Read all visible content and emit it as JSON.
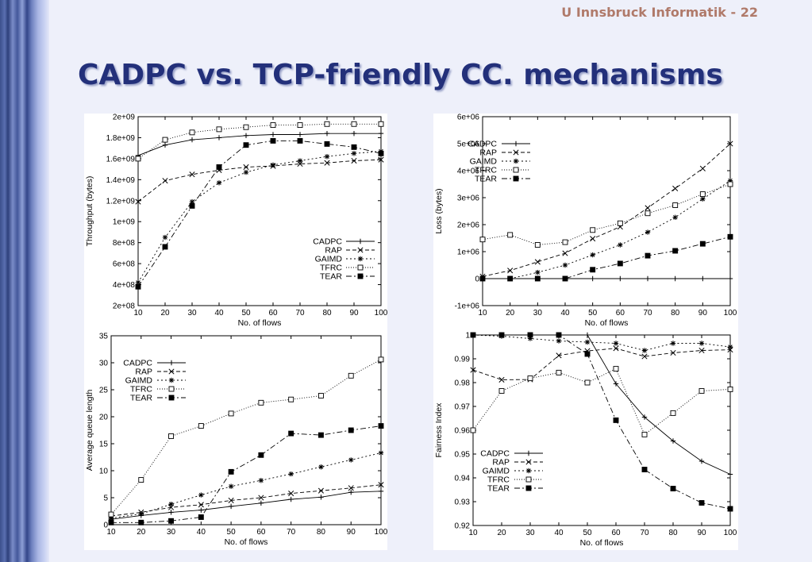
{
  "slide": {
    "header": "U Innsbruck Informatik - 22",
    "title": "CADPC vs. TCP-friendly CC. mechanisms"
  },
  "chart_data": [
    {
      "type": "line",
      "xlabel": "No. of flows",
      "ylabel": "Throughput (bytes)",
      "x": [
        10,
        20,
        30,
        40,
        50,
        60,
        70,
        80,
        90,
        100
      ],
      "xlim": [
        10,
        100
      ],
      "ylim": [
        200000000,
        2000000000
      ],
      "xticks": [
        "10",
        "20",
        "30",
        "40",
        "50",
        "60",
        "70",
        "80",
        "90",
        "100"
      ],
      "yticks": [
        "2e+08",
        "4e+08",
        "6e+08",
        "8e+08",
        "1e+09",
        "1.2e+09",
        "1.4e+09",
        "1.6e+09",
        "1.8e+09",
        "2e+09"
      ],
      "legend_position": "lower-right",
      "series": [
        {
          "name": "CADPC",
          "marker": "plus",
          "dash": "",
          "values": [
            1630000000,
            1730000000,
            1780000000,
            1800000000,
            1820000000,
            1830000000,
            1830000000,
            1840000000,
            1840000000,
            1840000000
          ]
        },
        {
          "name": "RAP",
          "marker": "x",
          "dash": "5,3",
          "values": [
            1190000000,
            1390000000,
            1450000000,
            1490000000,
            1520000000,
            1530000000,
            1550000000,
            1560000000,
            1580000000,
            1590000000
          ]
        },
        {
          "name": "GAIMD",
          "marker": "star",
          "dash": "2,3",
          "values": [
            420000000,
            850000000,
            1190000000,
            1370000000,
            1470000000,
            1540000000,
            1580000000,
            1620000000,
            1650000000,
            1670000000
          ]
        },
        {
          "name": "TFRC",
          "marker": "square",
          "dash": "1,2",
          "values": [
            1600000000,
            1780000000,
            1850000000,
            1880000000,
            1900000000,
            1920000000,
            1920000000,
            1930000000,
            1930000000,
            1930000000
          ]
        },
        {
          "name": "TEAR",
          "marker": "filled-square",
          "dash": "7,3,2,3",
          "values": [
            380000000,
            760000000,
            1150000000,
            1520000000,
            1730000000,
            1770000000,
            1770000000,
            1740000000,
            1710000000,
            1650000000
          ]
        }
      ]
    },
    {
      "type": "line",
      "xlabel": "No. of flows",
      "ylabel": "Loss (bytes)",
      "x": [
        10,
        20,
        30,
        40,
        50,
        60,
        70,
        80,
        90,
        100
      ],
      "xlim": [
        10,
        100
      ],
      "ylim": [
        -1000000,
        6000000
      ],
      "xticks": [
        "10",
        "20",
        "30",
        "40",
        "50",
        "60",
        "70",
        "80",
        "90",
        "100"
      ],
      "yticks": [
        "-1e+06",
        "0",
        "1e+06",
        "2e+06",
        "3e+06",
        "4e+06",
        "5e+06",
        "6e+06"
      ],
      "legend_position": "top-left",
      "series": [
        {
          "name": "CADPC",
          "marker": "plus",
          "dash": "",
          "values": [
            0,
            0,
            0,
            0,
            0,
            0,
            0,
            0,
            0,
            0
          ]
        },
        {
          "name": "RAP",
          "marker": "x",
          "dash": "5,3",
          "values": [
            80000,
            300000,
            620000,
            940000,
            1480000,
            1920000,
            2620000,
            3340000,
            4080000,
            5000000
          ]
        },
        {
          "name": "GAIMD",
          "marker": "star",
          "dash": "2,3",
          "values": [
            0,
            0,
            230000,
            500000,
            880000,
            1250000,
            1720000,
            2270000,
            2950000,
            3630000
          ]
        },
        {
          "name": "TFRC",
          "marker": "square",
          "dash": "1,2",
          "values": [
            1450000,
            1620000,
            1250000,
            1350000,
            1800000,
            2050000,
            2420000,
            2720000,
            3130000,
            3500000
          ]
        },
        {
          "name": "TEAR",
          "marker": "filled-square",
          "dash": "7,3,2,3",
          "values": [
            0,
            0,
            0,
            0,
            330000,
            560000,
            850000,
            1030000,
            1290000,
            1550000
          ]
        }
      ]
    },
    {
      "type": "line",
      "xlabel": "No. of flows",
      "ylabel": "Average queue length",
      "x": [
        10,
        20,
        30,
        40,
        50,
        60,
        70,
        80,
        90,
        100
      ],
      "xlim": [
        10,
        100
      ],
      "ylim": [
        0,
        35
      ],
      "xticks": [
        "10",
        "20",
        "30",
        "40",
        "50",
        "60",
        "70",
        "80",
        "90",
        "100"
      ],
      "yticks": [
        "0",
        "5",
        "10",
        "15",
        "20",
        "25",
        "30",
        "35"
      ],
      "legend_position": "top-left",
      "series": [
        {
          "name": "CADPC",
          "marker": "plus",
          "dash": "",
          "values": [
            1.0,
            1.7,
            2.3,
            2.7,
            3.4,
            4.0,
            4.7,
            5.1,
            6.0,
            6.2
          ]
        },
        {
          "name": "RAP",
          "marker": "x",
          "dash": "5,3",
          "values": [
            1.6,
            2.3,
            3.2,
            3.7,
            4.5,
            5.0,
            5.8,
            6.3,
            6.8,
            7.4
          ]
        },
        {
          "name": "GAIMD",
          "marker": "star",
          "dash": "2,3",
          "values": [
            1.2,
            2.0,
            3.8,
            5.5,
            7.1,
            8.2,
            9.4,
            10.7,
            12.0,
            13.3
          ]
        },
        {
          "name": "TFRC",
          "marker": "square",
          "dash": "1,2",
          "values": [
            1.9,
            8.3,
            16.4,
            18.3,
            20.6,
            22.6,
            23.2,
            23.9,
            27.6,
            30.6
          ]
        },
        {
          "name": "TEAR",
          "marker": "filled-square",
          "dash": "7,3,2,3",
          "values": [
            0.4,
            0.4,
            0.7,
            1.4,
            9.8,
            12.9,
            16.9,
            16.6,
            17.5,
            18.3
          ]
        }
      ]
    },
    {
      "type": "line",
      "xlabel": "No. of flows",
      "ylabel": "Fairness Index",
      "x": [
        10,
        20,
        30,
        40,
        50,
        60,
        70,
        80,
        90,
        100
      ],
      "xlim": [
        10,
        100
      ],
      "ylim": [
        0.92,
        1.0
      ],
      "xticks": [
        "10",
        "20",
        "30",
        "40",
        "50",
        "60",
        "70",
        "80",
        "90",
        "100"
      ],
      "yticks": [
        "0.92",
        "0.93",
        "0.94",
        "0.95",
        "0.96",
        "0.97",
        "0.98",
        "0.99",
        "1"
      ],
      "legend_position": "bottom-left",
      "series": [
        {
          "name": "CADPC",
          "marker": "plus",
          "dash": "",
          "values": [
            1.0,
            1.0,
            1.0,
            1.0,
            1.0,
            0.9795,
            0.9655,
            0.9555,
            0.947,
            0.9415
          ]
        },
        {
          "name": "RAP",
          "marker": "x",
          "dash": "5,3",
          "values": [
            0.9853,
            0.9812,
            0.9813,
            0.9914,
            0.9933,
            0.9944,
            0.991,
            0.9925,
            0.9935,
            0.9938
          ]
        },
        {
          "name": "GAIMD",
          "marker": "star",
          "dash": "2,3",
          "values": [
            1.0,
            0.9995,
            0.9985,
            0.9975,
            0.997,
            0.9965,
            0.9935,
            0.9965,
            0.9965,
            0.995
          ]
        },
        {
          "name": "TFRC",
          "marker": "square",
          "dash": "1,2",
          "values": [
            0.96,
            0.9765,
            0.9818,
            0.9842,
            0.98,
            0.9858,
            0.9582,
            0.9672,
            0.9765,
            0.9772
          ]
        },
        {
          "name": "TEAR",
          "marker": "filled-square",
          "dash": "7,3,2,3",
          "values": [
            1.0,
            1.0,
            1.0,
            1.0,
            0.992,
            0.9642,
            0.9435,
            0.9355,
            0.9295,
            0.927
          ]
        }
      ]
    }
  ]
}
